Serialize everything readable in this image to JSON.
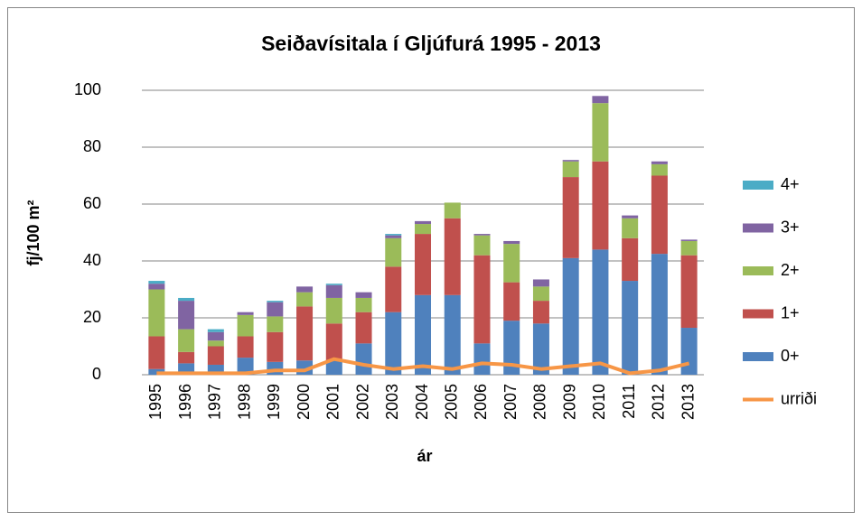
{
  "chart_data": {
    "type": "stacked_bar_line",
    "title": "Seiðavísitala í Gljúfurá 1995 - 2013",
    "xlabel": "ár",
    "ylabel": "fj/100 m²",
    "categories": [
      "1995",
      "1996",
      "1997",
      "1998",
      "1999",
      "2000",
      "2001",
      "2002",
      "2003",
      "2004",
      "2005",
      "2006",
      "2007",
      "2008",
      "2009",
      "2010",
      "2011",
      "2012",
      "2013"
    ],
    "series": [
      {
        "name": "0+",
        "color": "#4f81bd",
        "values": [
          2,
          4,
          3.5,
          6,
          4.5,
          5,
          5,
          11,
          22,
          28,
          28,
          11,
          19,
          18,
          41,
          44,
          33,
          42.5,
          16.5
        ]
      },
      {
        "name": "1+",
        "color": "#c0504d",
        "values": [
          11.5,
          4,
          6.5,
          7.5,
          10.5,
          19,
          13,
          11,
          16,
          21.5,
          27,
          31,
          13.5,
          8,
          28.5,
          31,
          15,
          27.5,
          25.5
        ]
      },
      {
        "name": "2+",
        "color": "#9bbb59",
        "values": [
          16.5,
          8,
          2,
          7.5,
          5.5,
          5,
          9,
          5,
          10,
          3.5,
          5.5,
          7,
          13.5,
          5,
          5.5,
          20.5,
          7,
          4,
          5
        ]
      },
      {
        "name": "3+",
        "color": "#8064a2",
        "values": [
          2,
          10,
          3,
          1,
          5,
          2,
          4.5,
          2,
          1,
          1,
          0,
          0.5,
          1,
          2.5,
          0.5,
          2.5,
          1,
          1,
          0.5
        ]
      },
      {
        "name": "4+",
        "color": "#4bacc6",
        "values": [
          1,
          1,
          1,
          0,
          0.5,
          0,
          0.5,
          0,
          0.5,
          0,
          0,
          0,
          0,
          0,
          0,
          0,
          0,
          0,
          0
        ]
      },
      {
        "name": "urriði",
        "color": "#f79646",
        "type": "line",
        "values": [
          0.5,
          0.5,
          0.5,
          0.5,
          1.5,
          1.5,
          5.5,
          3.5,
          2,
          3,
          2,
          4,
          3.5,
          2,
          3,
          4,
          0.5,
          1.5,
          4
        ]
      }
    ],
    "ylim": [
      0,
      100
    ],
    "yticks": [
      0,
      20,
      40,
      60,
      80,
      100
    ],
    "grid": true,
    "legend": "right"
  }
}
